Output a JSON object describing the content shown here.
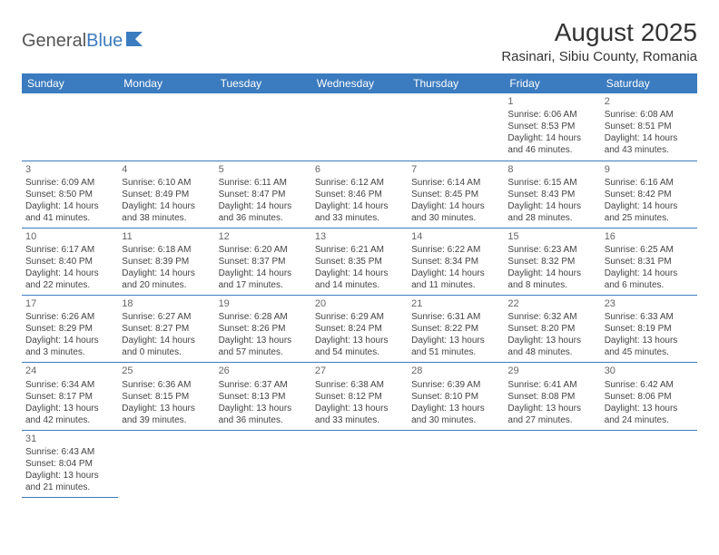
{
  "logo": {
    "text1": "General",
    "text2": "Blue"
  },
  "header": {
    "title": "August 2025",
    "location": "Rasinari, Sibiu County, Romania"
  },
  "colors": {
    "accent": "#3b7bbf",
    "text": "#333333",
    "cell_text": "#444444",
    "bg": "#ffffff"
  },
  "weekdays": [
    "Sunday",
    "Monday",
    "Tuesday",
    "Wednesday",
    "Thursday",
    "Friday",
    "Saturday"
  ],
  "weeks": [
    [
      null,
      null,
      null,
      null,
      null,
      {
        "d": "1",
        "sr": "Sunrise: 6:06 AM",
        "ss": "Sunset: 8:53 PM",
        "dl1": "Daylight: 14 hours",
        "dl2": "and 46 minutes."
      },
      {
        "d": "2",
        "sr": "Sunrise: 6:08 AM",
        "ss": "Sunset: 8:51 PM",
        "dl1": "Daylight: 14 hours",
        "dl2": "and 43 minutes."
      }
    ],
    [
      {
        "d": "3",
        "sr": "Sunrise: 6:09 AM",
        "ss": "Sunset: 8:50 PM",
        "dl1": "Daylight: 14 hours",
        "dl2": "and 41 minutes."
      },
      {
        "d": "4",
        "sr": "Sunrise: 6:10 AM",
        "ss": "Sunset: 8:49 PM",
        "dl1": "Daylight: 14 hours",
        "dl2": "and 38 minutes."
      },
      {
        "d": "5",
        "sr": "Sunrise: 6:11 AM",
        "ss": "Sunset: 8:47 PM",
        "dl1": "Daylight: 14 hours",
        "dl2": "and 36 minutes."
      },
      {
        "d": "6",
        "sr": "Sunrise: 6:12 AM",
        "ss": "Sunset: 8:46 PM",
        "dl1": "Daylight: 14 hours",
        "dl2": "and 33 minutes."
      },
      {
        "d": "7",
        "sr": "Sunrise: 6:14 AM",
        "ss": "Sunset: 8:45 PM",
        "dl1": "Daylight: 14 hours",
        "dl2": "and 30 minutes."
      },
      {
        "d": "8",
        "sr": "Sunrise: 6:15 AM",
        "ss": "Sunset: 8:43 PM",
        "dl1": "Daylight: 14 hours",
        "dl2": "and 28 minutes."
      },
      {
        "d": "9",
        "sr": "Sunrise: 6:16 AM",
        "ss": "Sunset: 8:42 PM",
        "dl1": "Daylight: 14 hours",
        "dl2": "and 25 minutes."
      }
    ],
    [
      {
        "d": "10",
        "sr": "Sunrise: 6:17 AM",
        "ss": "Sunset: 8:40 PM",
        "dl1": "Daylight: 14 hours",
        "dl2": "and 22 minutes."
      },
      {
        "d": "11",
        "sr": "Sunrise: 6:18 AM",
        "ss": "Sunset: 8:39 PM",
        "dl1": "Daylight: 14 hours",
        "dl2": "and 20 minutes."
      },
      {
        "d": "12",
        "sr": "Sunrise: 6:20 AM",
        "ss": "Sunset: 8:37 PM",
        "dl1": "Daylight: 14 hours",
        "dl2": "and 17 minutes."
      },
      {
        "d": "13",
        "sr": "Sunrise: 6:21 AM",
        "ss": "Sunset: 8:35 PM",
        "dl1": "Daylight: 14 hours",
        "dl2": "and 14 minutes."
      },
      {
        "d": "14",
        "sr": "Sunrise: 6:22 AM",
        "ss": "Sunset: 8:34 PM",
        "dl1": "Daylight: 14 hours",
        "dl2": "and 11 minutes."
      },
      {
        "d": "15",
        "sr": "Sunrise: 6:23 AM",
        "ss": "Sunset: 8:32 PM",
        "dl1": "Daylight: 14 hours",
        "dl2": "and 8 minutes."
      },
      {
        "d": "16",
        "sr": "Sunrise: 6:25 AM",
        "ss": "Sunset: 8:31 PM",
        "dl1": "Daylight: 14 hours",
        "dl2": "and 6 minutes."
      }
    ],
    [
      {
        "d": "17",
        "sr": "Sunrise: 6:26 AM",
        "ss": "Sunset: 8:29 PM",
        "dl1": "Daylight: 14 hours",
        "dl2": "and 3 minutes."
      },
      {
        "d": "18",
        "sr": "Sunrise: 6:27 AM",
        "ss": "Sunset: 8:27 PM",
        "dl1": "Daylight: 14 hours",
        "dl2": "and 0 minutes."
      },
      {
        "d": "19",
        "sr": "Sunrise: 6:28 AM",
        "ss": "Sunset: 8:26 PM",
        "dl1": "Daylight: 13 hours",
        "dl2": "and 57 minutes."
      },
      {
        "d": "20",
        "sr": "Sunrise: 6:29 AM",
        "ss": "Sunset: 8:24 PM",
        "dl1": "Daylight: 13 hours",
        "dl2": "and 54 minutes."
      },
      {
        "d": "21",
        "sr": "Sunrise: 6:31 AM",
        "ss": "Sunset: 8:22 PM",
        "dl1": "Daylight: 13 hours",
        "dl2": "and 51 minutes."
      },
      {
        "d": "22",
        "sr": "Sunrise: 6:32 AM",
        "ss": "Sunset: 8:20 PM",
        "dl1": "Daylight: 13 hours",
        "dl2": "and 48 minutes."
      },
      {
        "d": "23",
        "sr": "Sunrise: 6:33 AM",
        "ss": "Sunset: 8:19 PM",
        "dl1": "Daylight: 13 hours",
        "dl2": "and 45 minutes."
      }
    ],
    [
      {
        "d": "24",
        "sr": "Sunrise: 6:34 AM",
        "ss": "Sunset: 8:17 PM",
        "dl1": "Daylight: 13 hours",
        "dl2": "and 42 minutes."
      },
      {
        "d": "25",
        "sr": "Sunrise: 6:36 AM",
        "ss": "Sunset: 8:15 PM",
        "dl1": "Daylight: 13 hours",
        "dl2": "and 39 minutes."
      },
      {
        "d": "26",
        "sr": "Sunrise: 6:37 AM",
        "ss": "Sunset: 8:13 PM",
        "dl1": "Daylight: 13 hours",
        "dl2": "and 36 minutes."
      },
      {
        "d": "27",
        "sr": "Sunrise: 6:38 AM",
        "ss": "Sunset: 8:12 PM",
        "dl1": "Daylight: 13 hours",
        "dl2": "and 33 minutes."
      },
      {
        "d": "28",
        "sr": "Sunrise: 6:39 AM",
        "ss": "Sunset: 8:10 PM",
        "dl1": "Daylight: 13 hours",
        "dl2": "and 30 minutes."
      },
      {
        "d": "29",
        "sr": "Sunrise: 6:41 AM",
        "ss": "Sunset: 8:08 PM",
        "dl1": "Daylight: 13 hours",
        "dl2": "and 27 minutes."
      },
      {
        "d": "30",
        "sr": "Sunrise: 6:42 AM",
        "ss": "Sunset: 8:06 PM",
        "dl1": "Daylight: 13 hours",
        "dl2": "and 24 minutes."
      }
    ],
    [
      {
        "d": "31",
        "sr": "Sunrise: 6:43 AM",
        "ss": "Sunset: 8:04 PM",
        "dl1": "Daylight: 13 hours",
        "dl2": "and 21 minutes."
      },
      null,
      null,
      null,
      null,
      null,
      null
    ]
  ]
}
